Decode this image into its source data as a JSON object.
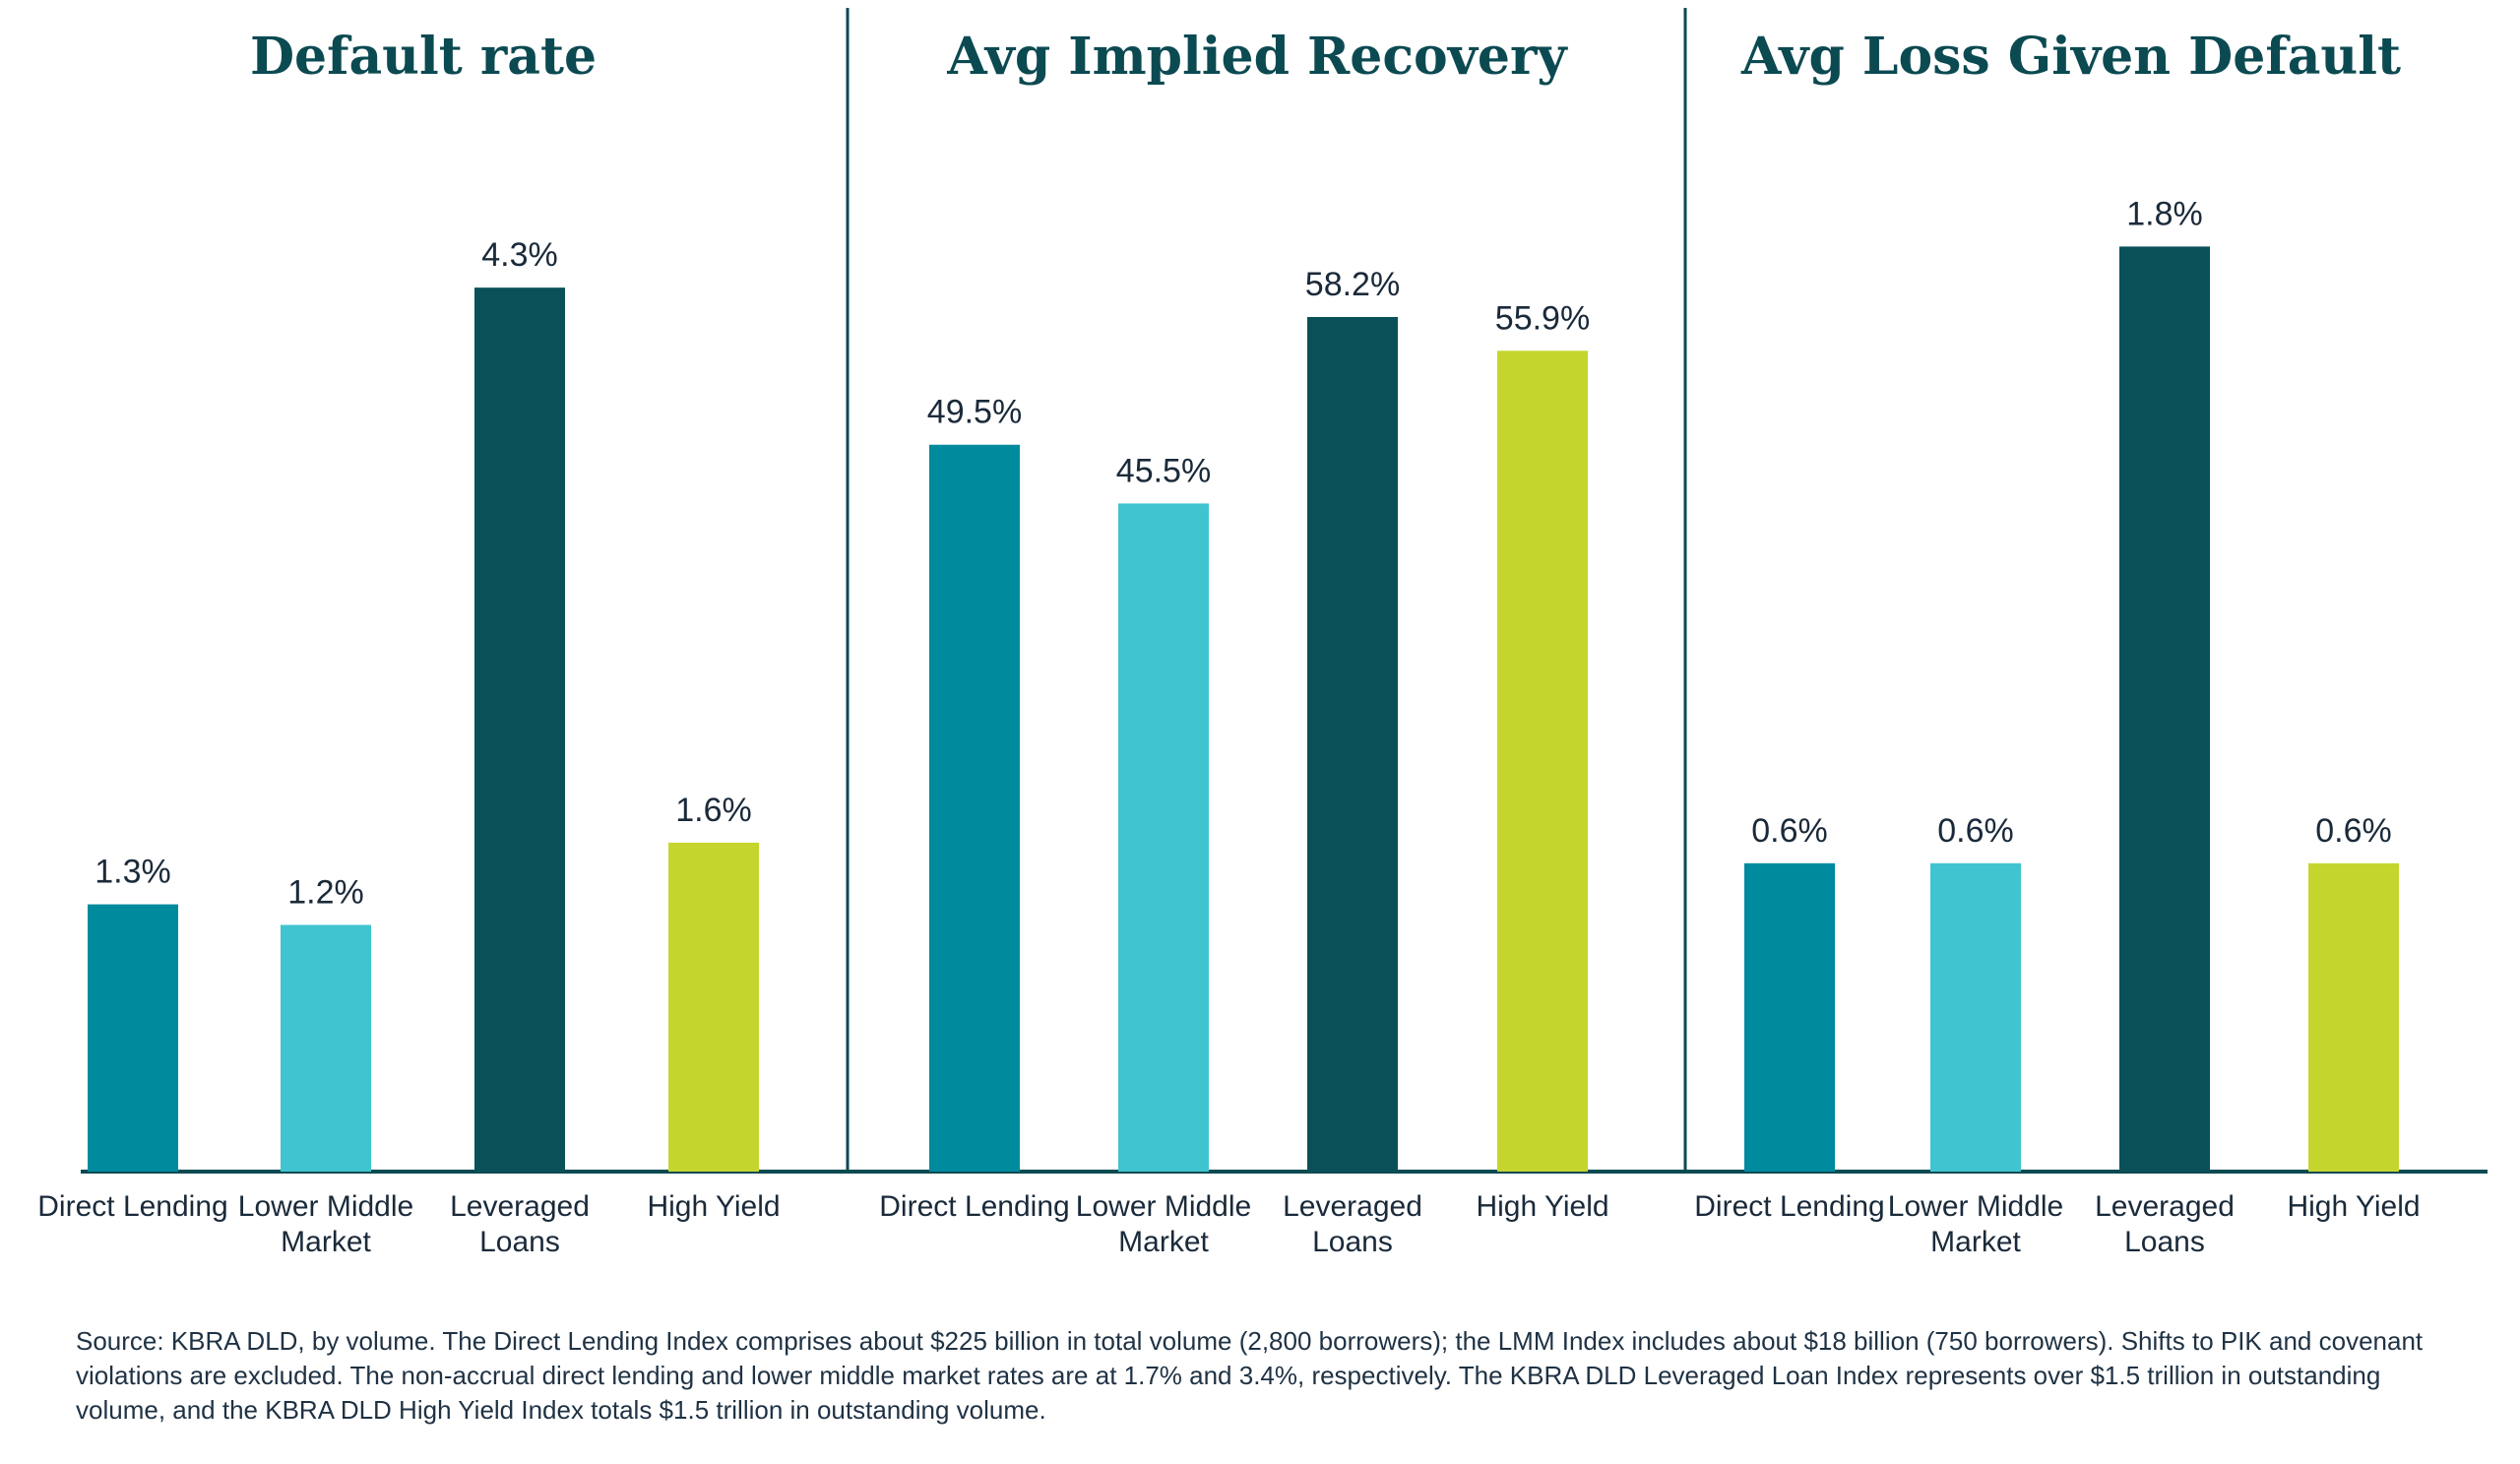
{
  "chart_data": [
    {
      "type": "bar",
      "title": "Default rate",
      "categories": [
        "Direct Lending",
        "Lower Middle Market",
        "Leveraged Loans",
        "High Yield"
      ],
      "values": [
        1.3,
        1.2,
        4.3,
        1.6
      ],
      "value_labels": [
        "1.3%",
        "1.2%",
        "4.3%",
        "1.6%"
      ],
      "colors": [
        "#008a9e",
        "#40c4d0",
        "#0a5059",
        "#c4d62e"
      ],
      "ylim": [
        0,
        5
      ]
    },
    {
      "type": "bar",
      "title": "Avg Implied Recovery",
      "categories": [
        "Direct Lending",
        "Lower Middle Market",
        "Leveraged Loans",
        "High Yield"
      ],
      "values": [
        49.5,
        45.5,
        58.2,
        55.9
      ],
      "value_labels": [
        "49.5%",
        "45.5%",
        "58.2%",
        "55.9%"
      ],
      "colors": [
        "#008a9e",
        "#40c4d0",
        "#0a5059",
        "#c4d62e"
      ],
      "ylim": [
        0,
        70
      ]
    },
    {
      "type": "bar",
      "title": "Avg Loss Given Default",
      "categories": [
        "Direct Lending",
        "Lower Middle Market",
        "Leveraged Loans",
        "High Yield"
      ],
      "values": [
        0.6,
        0.6,
        1.8,
        0.6
      ],
      "value_labels": [
        "0.6%",
        "0.6%",
        "1.8%",
        "0.6%"
      ],
      "colors": [
        "#008a9e",
        "#40c4d0",
        "#0a5059",
        "#c4d62e"
      ],
      "ylim": [
        0,
        2
      ]
    }
  ],
  "footnote": "Source: KBRA DLD, by volume. The Direct Lending Index comprises about $225 billion in total volume (2,800 borrowers); the LMM Index includes about $18 billion (750 borrowers). Shifts to PIK and covenant violations are excluded. The non-accrual direct lending and lower middle market rates are at 1.7% and 3.4%, respectively. The KBRA DLD Leveraged Loan Index represents over $1.5 trillion in outstanding volume, and the KBRA DLD High Yield Index totals $1.5 trillion in outstanding volume."
}
